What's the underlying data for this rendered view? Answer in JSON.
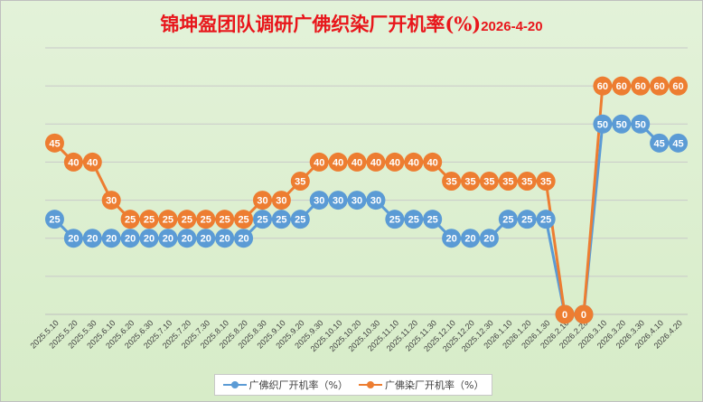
{
  "title": "锦坤盈团队调研广佛织染厂开机率(%)",
  "title_date": "2026-4-20",
  "colors": {
    "title": "#e8161b",
    "series1": "#5b9bd5",
    "series2": "#ed7d31"
  },
  "chart_data": {
    "type": "line",
    "title": "锦坤盈团队调研广佛织染厂开机率(%)2026-4-20",
    "categories": [
      "2025.5.10",
      "2025.5.20",
      "2025.5.30",
      "2025.6.10",
      "2025.6.20",
      "2025.6.30",
      "2025.7.10",
      "2025.7.20",
      "2025.7.30",
      "2025.8.10",
      "2025.8.20",
      "2025.8.30",
      "2025.9.10",
      "2025.9.20",
      "2025.9.30",
      "2025.10.10",
      "2025.10.20",
      "2025.10.30",
      "2025.11.10",
      "2025.11.20",
      "2025.11.30",
      "2025.12.10",
      "2025.12.20",
      "2025.12.30",
      "2026.1.10",
      "2026.1.20",
      "2026.1.30",
      "2026.2.10",
      "2026.2.28",
      "2026.3.10",
      "2026.3.20",
      "2026.3.30",
      "2026.4.10",
      "2026.4.20"
    ],
    "series": [
      {
        "name": "广佛织厂开机率（%）",
        "values": [
          25,
          20,
          20,
          20,
          20,
          20,
          20,
          20,
          20,
          20,
          20,
          25,
          25,
          25,
          30,
          30,
          30,
          30,
          25,
          25,
          25,
          20,
          20,
          20,
          25,
          25,
          25,
          0,
          0,
          50,
          50,
          50,
          45,
          45
        ]
      },
      {
        "name": "广佛染厂开机率（%）",
        "values": [
          45,
          40,
          40,
          30,
          25,
          25,
          25,
          25,
          25,
          25,
          25,
          30,
          30,
          35,
          40,
          40,
          40,
          40,
          40,
          40,
          40,
          35,
          35,
          35,
          35,
          35,
          35,
          0,
          0,
          60,
          60,
          60,
          60,
          60
        ]
      }
    ],
    "ylim": [
      0,
      70
    ],
    "grid": true,
    "legend_position": "bottom",
    "data_labels": true
  }
}
